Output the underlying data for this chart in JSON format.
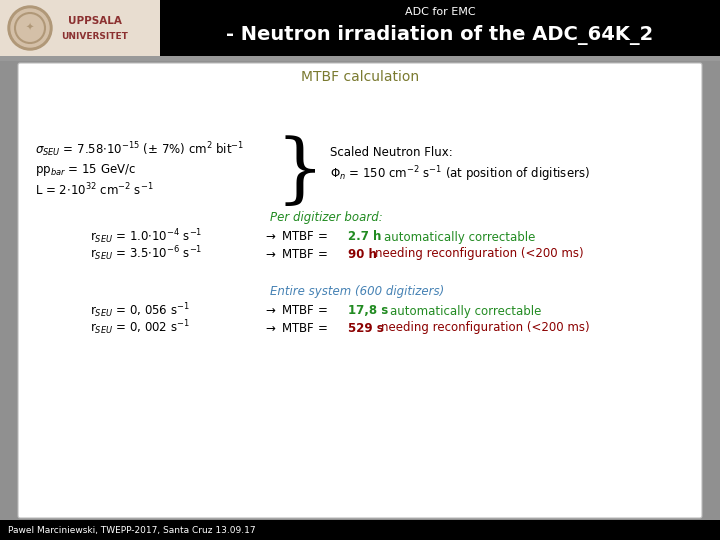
{
  "header_bg": "#000000",
  "header_subtitle": "ADC for EMC",
  "header_title": "- Neutron irradiation of the ADC_64K_2",
  "header_title_color": "#ffffff",
  "header_subtitle_color": "#ffffff",
  "slide_bg": "#909090",
  "content_bg": "#ffffff",
  "footer_bg": "#000000",
  "footer_text": "Pawel Marciniewski, TWEPP-2017, Santa Cruz 13.09.17",
  "footer_color": "#ffffff",
  "mtbf_title": "MTBF calculation",
  "mtbf_title_color": "#7a7a30",
  "text_color": "#000000",
  "green_color": "#228B22",
  "red_color": "#8B0000",
  "blue_color": "#4682B4",
  "logo_bg": "#e8ddd0",
  "logo_circle_outer": "#b09878",
  "logo_circle_inner": "#d4c0a8",
  "logo_text_color": "#8B3030"
}
